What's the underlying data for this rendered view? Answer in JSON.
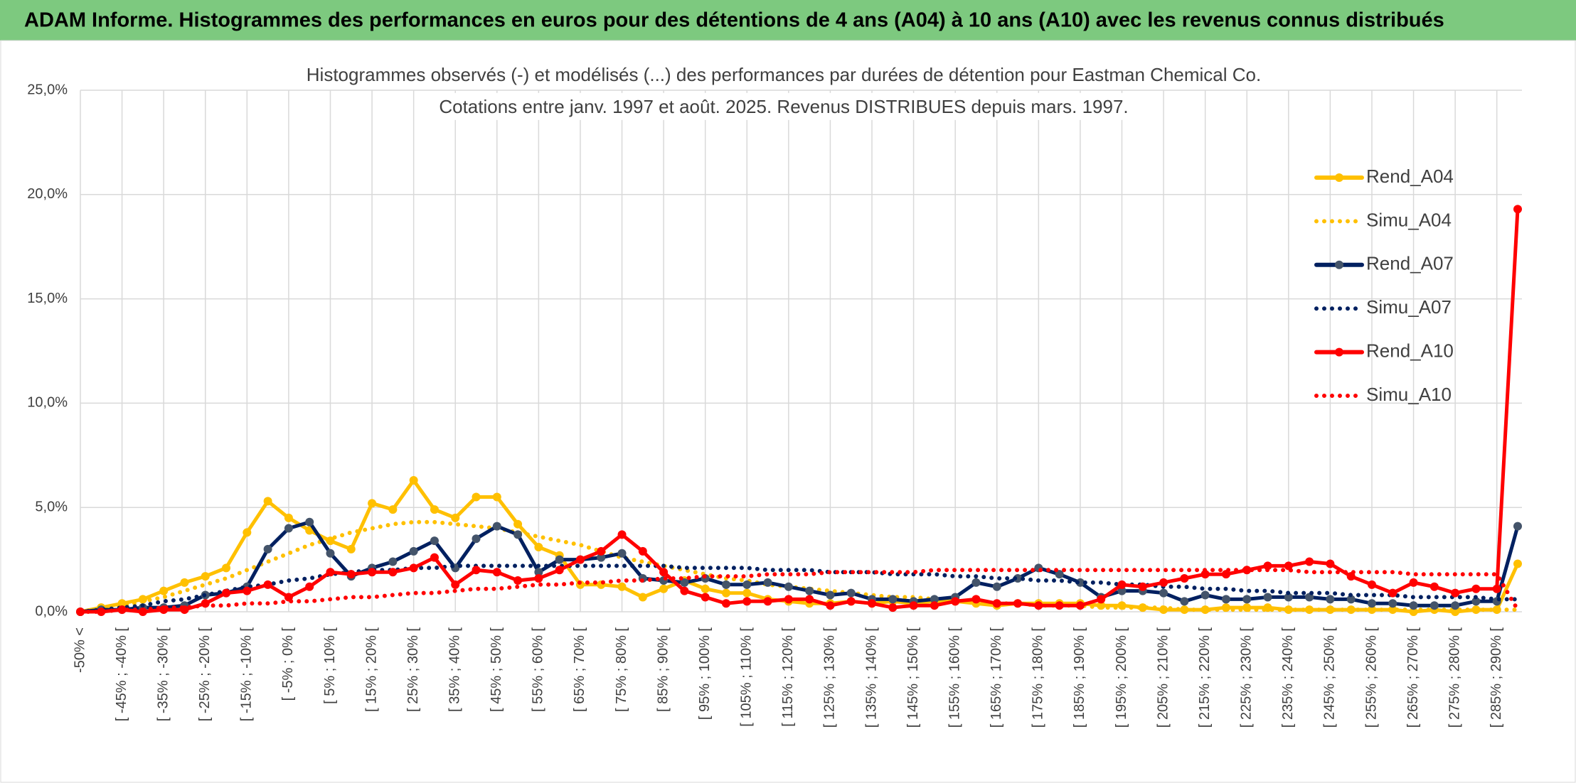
{
  "header": {
    "title": "ADAM Informe. Histogrammes des performances en euros pour des détentions de 4 ans (A04) à 10 ans (A10) avec les revenus connus distribués"
  },
  "chart_data": {
    "type": "line",
    "title": "Histogrammes observés (-) et modélisés (...) des performances par durées de détention pour Eastman Chemical Co.",
    "subtitle": "Cotations entre janv. 1997 et août. 2025. Revenus DISTRIBUES depuis mars. 1997.",
    "categories": [
      "-50% <",
      null,
      "[ -45% ; -40% [",
      null,
      "[ -35% ; -30% [",
      null,
      "[ -25% ; -20% [",
      null,
      "[ -15% ; -10% [",
      null,
      "[ -5% ; 0% [",
      null,
      "[ 5% ; 10% [",
      null,
      "[ 15% ; 20% [",
      null,
      "[ 25% ; 30% [",
      null,
      "[ 35% ; 40% [",
      null,
      "[ 45% ; 50% [",
      null,
      "[ 55% ; 60% [",
      null,
      "[ 65% ; 70% [",
      null,
      "[ 75% ; 80% [",
      null,
      "[ 85% ; 90% [",
      null,
      "[ 95% ; 100% [",
      null,
      "[ 105% ; 110% [",
      null,
      "[ 115% ; 120% [",
      null,
      "[ 125% ; 130% [",
      null,
      "[ 135% ; 140% [",
      null,
      "[ 145% ; 150% [",
      null,
      "[ 155% ; 160% [",
      null,
      "[ 165% ; 170% [",
      null,
      "[ 175% ; 180% [",
      null,
      "[ 185% ; 190% [",
      null,
      "[ 195% ; 200% [",
      null,
      "[ 205% ; 210% [",
      null,
      "[ 215% ; 220% [",
      null,
      "[ 225% ; 230% [",
      null,
      "[ 235% ; 240% [",
      null,
      "[ 245% ; 250% [",
      null,
      "[ 255% ; 260% [",
      null,
      "[ 265% ; 270% [",
      null,
      "[ 275% ; 280% [",
      null,
      "[ 285% ; 290% [",
      null
    ],
    "series": [
      {
        "name": "Rend_A04",
        "color": "#ffc000",
        "style": "solid",
        "marker_color": "#ffc000",
        "values": [
          0.0,
          0.2,
          0.4,
          0.6,
          1.0,
          1.4,
          1.7,
          2.1,
          3.8,
          5.3,
          4.5,
          3.9,
          3.4,
          3.0,
          5.2,
          4.9,
          6.3,
          4.9,
          4.5,
          5.5,
          5.5,
          4.2,
          3.1,
          2.7,
          1.3,
          1.3,
          1.2,
          0.7,
          1.1,
          1.5,
          1.1,
          0.9,
          0.9,
          0.6,
          0.5,
          0.4,
          0.4,
          0.5,
          0.4,
          0.5,
          0.4,
          0.5,
          0.5,
          0.4,
          0.3,
          0.4,
          0.4,
          0.4,
          0.4,
          0.3,
          0.3,
          0.2,
          0.1,
          0.1,
          0.1,
          0.2,
          0.2,
          0.2,
          0.1,
          0.1,
          0.1,
          0.1,
          0.1,
          0.1,
          0.0,
          0.1,
          0.0,
          0.1,
          0.1,
          2.3
        ]
      },
      {
        "name": "Simu_A04",
        "color": "#ffc000",
        "style": "dotted",
        "values": [
          0,
          0.1,
          0.3,
          0.5,
          0.7,
          1.0,
          1.3,
          1.6,
          2.0,
          2.4,
          2.8,
          3.2,
          3.5,
          3.8,
          4.0,
          4.2,
          4.3,
          4.3,
          4.2,
          4.1,
          4.0,
          3.8,
          3.6,
          3.4,
          3.2,
          2.9,
          2.6,
          2.4,
          2.2,
          2.0,
          1.8,
          1.6,
          1.5,
          1.3,
          1.2,
          1.1,
          1.0,
          0.9,
          0.8,
          0.7,
          0.7,
          0.6,
          0.5,
          0.5,
          0.4,
          0.4,
          0.3,
          0.3,
          0.3,
          0.2,
          0.2,
          0.2,
          0.2,
          0.1,
          0.1,
          0.1,
          0.1,
          0.1,
          0.1,
          0.1,
          0.1,
          0.1,
          0.1,
          0.1,
          0.1,
          0.1,
          0.1,
          0.1,
          0.1,
          0.1
        ]
      },
      {
        "name": "Rend_A07",
        "color": "#002060",
        "style": "solid",
        "marker_color": "#44546a",
        "values": [
          0.0,
          0.1,
          0.1,
          0.2,
          0.2,
          0.3,
          0.8,
          0.9,
          1.2,
          3.0,
          4.0,
          4.3,
          2.8,
          1.7,
          2.1,
          2.4,
          2.9,
          3.4,
          2.1,
          3.5,
          4.1,
          3.7,
          1.9,
          2.5,
          2.5,
          2.6,
          2.8,
          1.6,
          1.5,
          1.4,
          1.6,
          1.3,
          1.3,
          1.4,
          1.2,
          1.0,
          0.8,
          0.9,
          0.6,
          0.6,
          0.5,
          0.6,
          0.7,
          1.4,
          1.2,
          1.6,
          2.1,
          1.8,
          1.4,
          0.7,
          1.0,
          1.0,
          0.9,
          0.5,
          0.8,
          0.6,
          0.6,
          0.7,
          0.7,
          0.7,
          0.6,
          0.6,
          0.4,
          0.4,
          0.3,
          0.3,
          0.3,
          0.5,
          0.5,
          4.1
        ]
      },
      {
        "name": "Simu_A07",
        "color": "#002060",
        "style": "dotted",
        "values": [
          0,
          0.1,
          0.2,
          0.3,
          0.5,
          0.6,
          0.8,
          1.0,
          1.2,
          1.3,
          1.5,
          1.6,
          1.8,
          1.9,
          2.0,
          2.0,
          2.1,
          2.1,
          2.2,
          2.2,
          2.2,
          2.2,
          2.2,
          2.2,
          2.2,
          2.2,
          2.2,
          2.2,
          2.2,
          2.1,
          2.1,
          2.1,
          2.1,
          2.0,
          2.0,
          2.0,
          1.9,
          1.9,
          1.9,
          1.8,
          1.8,
          1.8,
          1.7,
          1.7,
          1.6,
          1.6,
          1.5,
          1.5,
          1.4,
          1.4,
          1.3,
          1.3,
          1.2,
          1.2,
          1.1,
          1.1,
          1.0,
          1.0,
          0.9,
          0.9,
          0.9,
          0.8,
          0.8,
          0.8,
          0.7,
          0.7,
          0.7,
          0.7,
          0.6,
          0.6
        ]
      },
      {
        "name": "Rend_A10",
        "color": "#ff0000",
        "style": "solid",
        "marker_color": "#ff0000",
        "values": [
          0.0,
          0.0,
          0.1,
          0.0,
          0.1,
          0.1,
          0.4,
          0.9,
          1.0,
          1.3,
          0.7,
          1.2,
          1.9,
          1.8,
          1.9,
          1.9,
          2.1,
          2.6,
          1.3,
          2.0,
          1.9,
          1.5,
          1.6,
          2.0,
          2.5,
          2.9,
          3.7,
          2.9,
          1.9,
          1.0,
          0.7,
          0.4,
          0.5,
          0.5,
          0.6,
          0.6,
          0.3,
          0.5,
          0.4,
          0.2,
          0.3,
          0.3,
          0.5,
          0.6,
          0.4,
          0.4,
          0.3,
          0.3,
          0.3,
          0.6,
          1.3,
          1.2,
          1.4,
          1.6,
          1.8,
          1.8,
          2.0,
          2.2,
          2.2,
          2.4,
          2.3,
          1.7,
          1.3,
          0.9,
          1.4,
          1.2,
          0.9,
          1.1,
          1.1,
          19.3
        ]
      },
      {
        "name": "Simu_A10",
        "color": "#ff0000",
        "style": "dotted",
        "values": [
          0,
          0.0,
          0.1,
          0.1,
          0.2,
          0.2,
          0.3,
          0.3,
          0.4,
          0.4,
          0.5,
          0.5,
          0.6,
          0.7,
          0.7,
          0.8,
          0.9,
          0.9,
          1.0,
          1.1,
          1.1,
          1.2,
          1.3,
          1.3,
          1.4,
          1.4,
          1.5,
          1.5,
          1.6,
          1.6,
          1.7,
          1.7,
          1.7,
          1.8,
          1.8,
          1.8,
          1.9,
          1.9,
          1.9,
          1.9,
          1.9,
          2.0,
          2.0,
          2.0,
          2.0,
          2.0,
          2.0,
          2.0,
          2.0,
          2.0,
          2.0,
          2.0,
          2.0,
          2.0,
          2.0,
          2.0,
          2.0,
          2.0,
          2.0,
          1.9,
          1.9,
          1.9,
          1.9,
          1.9,
          1.8,
          1.8,
          1.8,
          1.8,
          1.8,
          0.1
        ]
      }
    ],
    "ylim": [
      0,
      25
    ],
    "yticks": [
      {
        "value": 0,
        "label": "0,0%"
      },
      {
        "value": 5,
        "label": "5,0%"
      },
      {
        "value": 10,
        "label": "10,0%"
      },
      {
        "value": 15,
        "label": "15,0%"
      },
      {
        "value": 20,
        "label": "20,0%"
      },
      {
        "value": 25,
        "label": "25,0%"
      }
    ],
    "grid": true,
    "legend": "right"
  }
}
